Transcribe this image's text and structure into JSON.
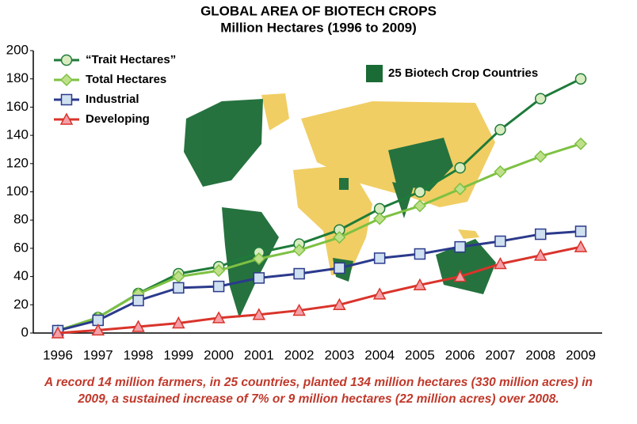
{
  "chart_data": {
    "type": "line",
    "title": "GLOBAL AREA OF BIOTECH CROPS",
    "subtitle": "Million Hectares (1996 to 2009)",
    "map_legend": "25 Biotech Crop Countries",
    "footnote": [
      "A record 14 million farmers, in 25 countries, planted 134 million hectares (330 million acres) in",
      "2009, a sustained increase of 7% or 9 million hectares (22 million acres) over 2008."
    ],
    "categories": [
      "1996",
      "1997",
      "1998",
      "1999",
      "2000",
      "2001",
      "2002",
      "2003",
      "2004",
      "2005",
      "2006",
      "2007",
      "2008",
      "2009"
    ],
    "series": [
      {
        "name": "“Trait Hectares”",
        "color": "#1e7b3a",
        "marker": "circle",
        "values": [
          1.7,
          11,
          28,
          42,
          47,
          57,
          63,
          73,
          88,
          100,
          117,
          144,
          166,
          180
        ]
      },
      {
        "name": "Total Hectares",
        "color": "#7dc142",
        "marker": "diamond",
        "values": [
          1.7,
          11,
          27.8,
          39.9,
          44.2,
          52.6,
          58.7,
          67.7,
          81,
          90,
          102,
          114.3,
          125,
          134
        ]
      },
      {
        "name": "Industrial",
        "color": "#2b3a8c",
        "marker": "square",
        "values": [
          1.7,
          9,
          23,
          32,
          33,
          39,
          42,
          46,
          53,
          56,
          61,
          65,
          70,
          72
        ]
      },
      {
        "name": "Developing",
        "color": "#d9342b",
        "marker": "triangle",
        "values": [
          0,
          2,
          4.5,
          7,
          10.7,
          13,
          16,
          20,
          27.5,
          34,
          40,
          49,
          55,
          61
        ]
      }
    ],
    "ylim": [
      0,
      200
    ],
    "yticks": [
      0,
      20,
      40,
      60,
      80,
      100,
      120,
      140,
      160,
      180,
      200
    ],
    "legend": "upper left",
    "grid": false
  }
}
